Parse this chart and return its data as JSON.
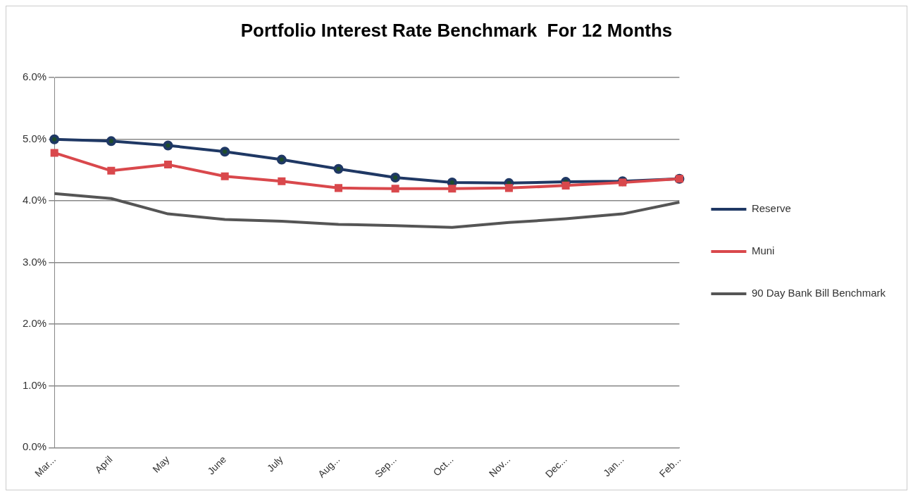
{
  "chart_data": {
    "type": "line",
    "title": "Portfolio Interest Rate Benchmark  For 12 Months",
    "categories": [
      "Mar...",
      "April",
      "May",
      "June",
      "July",
      "Aug...",
      "Sep...",
      "Oct...",
      "Nov...",
      "Dec...",
      "Jan...",
      "Feb..."
    ],
    "series": [
      {
        "name": "Reserve",
        "color": "#1f3864",
        "marker": "circle",
        "values": [
          5.0,
          4.97,
          4.9,
          4.8,
          4.67,
          4.52,
          4.38,
          4.3,
          4.29,
          4.31,
          4.32,
          4.36
        ]
      },
      {
        "name": "Muni",
        "color": "#d9484c",
        "marker": "square",
        "values": [
          4.78,
          4.49,
          4.59,
          4.4,
          4.32,
          4.21,
          4.2,
          4.2,
          4.21,
          4.25,
          4.3,
          4.36
        ]
      },
      {
        "name": "90 Day Bank Bill Benchmark",
        "color": "#555555",
        "marker": "none",
        "values": [
          4.12,
          4.04,
          3.79,
          3.7,
          3.67,
          3.62,
          3.6,
          3.57,
          3.65,
          3.71,
          3.79,
          3.98
        ]
      }
    ],
    "ylim": [
      0,
      6
    ],
    "yticks": [
      {
        "value": 0,
        "label": "0.0%"
      },
      {
        "value": 1,
        "label": "1.0%"
      },
      {
        "value": 2,
        "label": "2.0%"
      },
      {
        "value": 3,
        "label": "3.0%"
      },
      {
        "value": 4,
        "label": "4.0%"
      },
      {
        "value": 5,
        "label": "5.0%"
      },
      {
        "value": 6,
        "label": "6.0%"
      }
    ],
    "grid": "y",
    "legend": "right",
    "line_style": "solid"
  }
}
